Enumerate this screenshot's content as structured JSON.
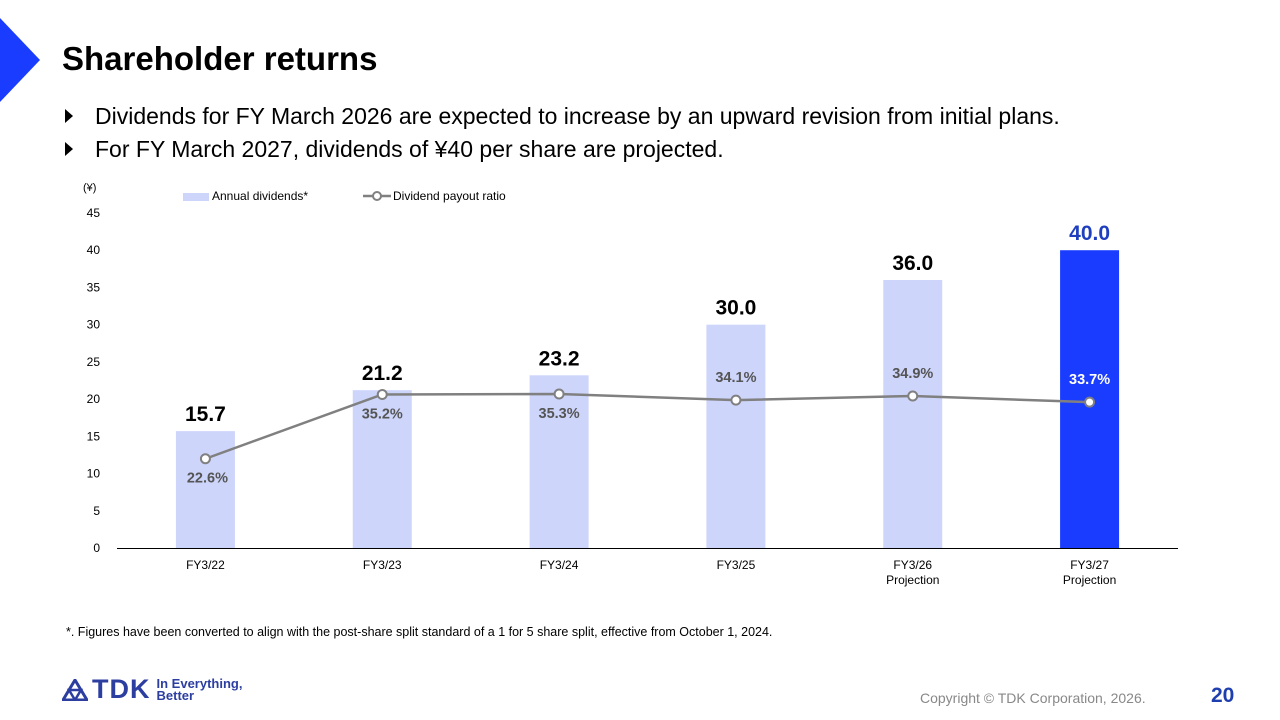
{
  "header": {
    "title": "Shareholder returns"
  },
  "bullets": [
    "Dividends for FY March 2026 are expected to increase by an upward revision from initial plans.",
    "For FY March 2027, dividends of ¥40 per share are projected."
  ],
  "chart_data": {
    "type": "bar",
    "yunit": "(¥)",
    "ylim": [
      0,
      45
    ],
    "yticks": [
      0,
      5,
      10,
      15,
      20,
      25,
      30,
      35,
      40,
      45
    ],
    "categories": [
      [
        "FY3/22"
      ],
      [
        "FY3/23"
      ],
      [
        "FY3/24"
      ],
      [
        "FY3/25"
      ],
      [
        "FY3/26",
        "Projection"
      ],
      [
        "FY3/27",
        "Projection"
      ]
    ],
    "series": [
      {
        "name": "Annual dividends*",
        "kind": "bar",
        "values": [
          15.7,
          21.2,
          23.2,
          30.0,
          36.0,
          40.0
        ],
        "labels": [
          "15.7",
          "21.2",
          "23.2",
          "30.0",
          "36.0",
          "40.0"
        ],
        "colors": [
          "#cdd5fb",
          "#cdd5fb",
          "#cdd5fb",
          "#cdd5fb",
          "#cdd5fb",
          "#1a3cff"
        ]
      },
      {
        "name": "Dividend payout ratio",
        "kind": "line",
        "values": [
          22.6,
          35.2,
          35.3,
          34.1,
          34.9,
          33.7
        ],
        "labels": [
          "22.6%",
          "35.2%",
          "35.3%",
          "34.1%",
          "34.9%",
          "33.7%"
        ],
        "color": "#808080"
      }
    ],
    "legend_position": "top-left"
  },
  "footnote": "*. Figures have been converted to align with the post-share split standard of a 1 for 5 share split, effective from October 1, 2024.",
  "footer": {
    "logo_text": "TDK",
    "tagline_1": "In Everything,",
    "tagline_2": "Better",
    "copyright": "Copyright © TDK Corporation, 2026.",
    "page_number": "20"
  },
  "colors": {
    "accent": "#1a3cff",
    "bar": "#cdd5fb",
    "line": "#808080",
    "highlight_label": "#1f3fbf"
  }
}
